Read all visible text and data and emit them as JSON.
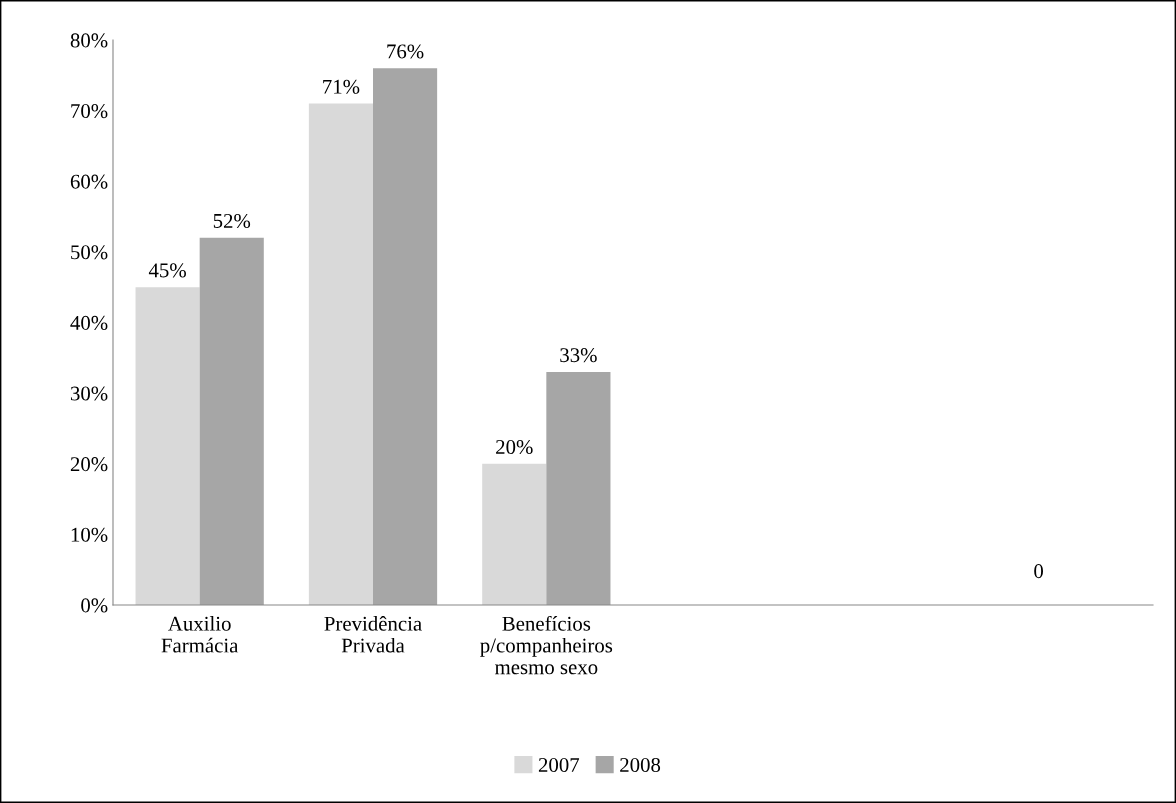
{
  "chart_data": {
    "type": "bar",
    "categories": [
      "Auxilio\nFarmácia",
      "Previdência\nPrivada",
      "Benefícios\np/companheiros\nmesmo sexo",
      null,
      null,
      null
    ],
    "series": [
      {
        "name": "2007",
        "color": "#d9d9d9",
        "values": [
          45,
          71,
          20,
          null,
          null,
          null
        ],
        "value_labels": [
          "45%",
          "71%",
          "20%",
          null,
          null,
          null
        ]
      },
      {
        "name": "2008",
        "color": "#a6a6a6",
        "values": [
          52,
          76,
          33,
          null,
          null,
          null
        ],
        "value_labels": [
          "52%",
          "76%",
          "33%",
          null,
          null,
          null
        ]
      }
    ],
    "ylim": [
      0,
      80
    ],
    "yticks": [
      {
        "value": 0,
        "label": "0%"
      },
      {
        "value": 10,
        "label": "10%"
      },
      {
        "value": 20,
        "label": "20%"
      },
      {
        "value": 30,
        "label": "30%"
      },
      {
        "value": 40,
        "label": "40%"
      },
      {
        "value": 50,
        "label": "50%"
      },
      {
        "value": 60,
        "label": "60%"
      },
      {
        "value": 70,
        "label": "70%"
      },
      {
        "value": 80,
        "label": "80%"
      }
    ],
    "grid": false,
    "legend": "bottom",
    "annotations": [
      "0"
    ]
  }
}
